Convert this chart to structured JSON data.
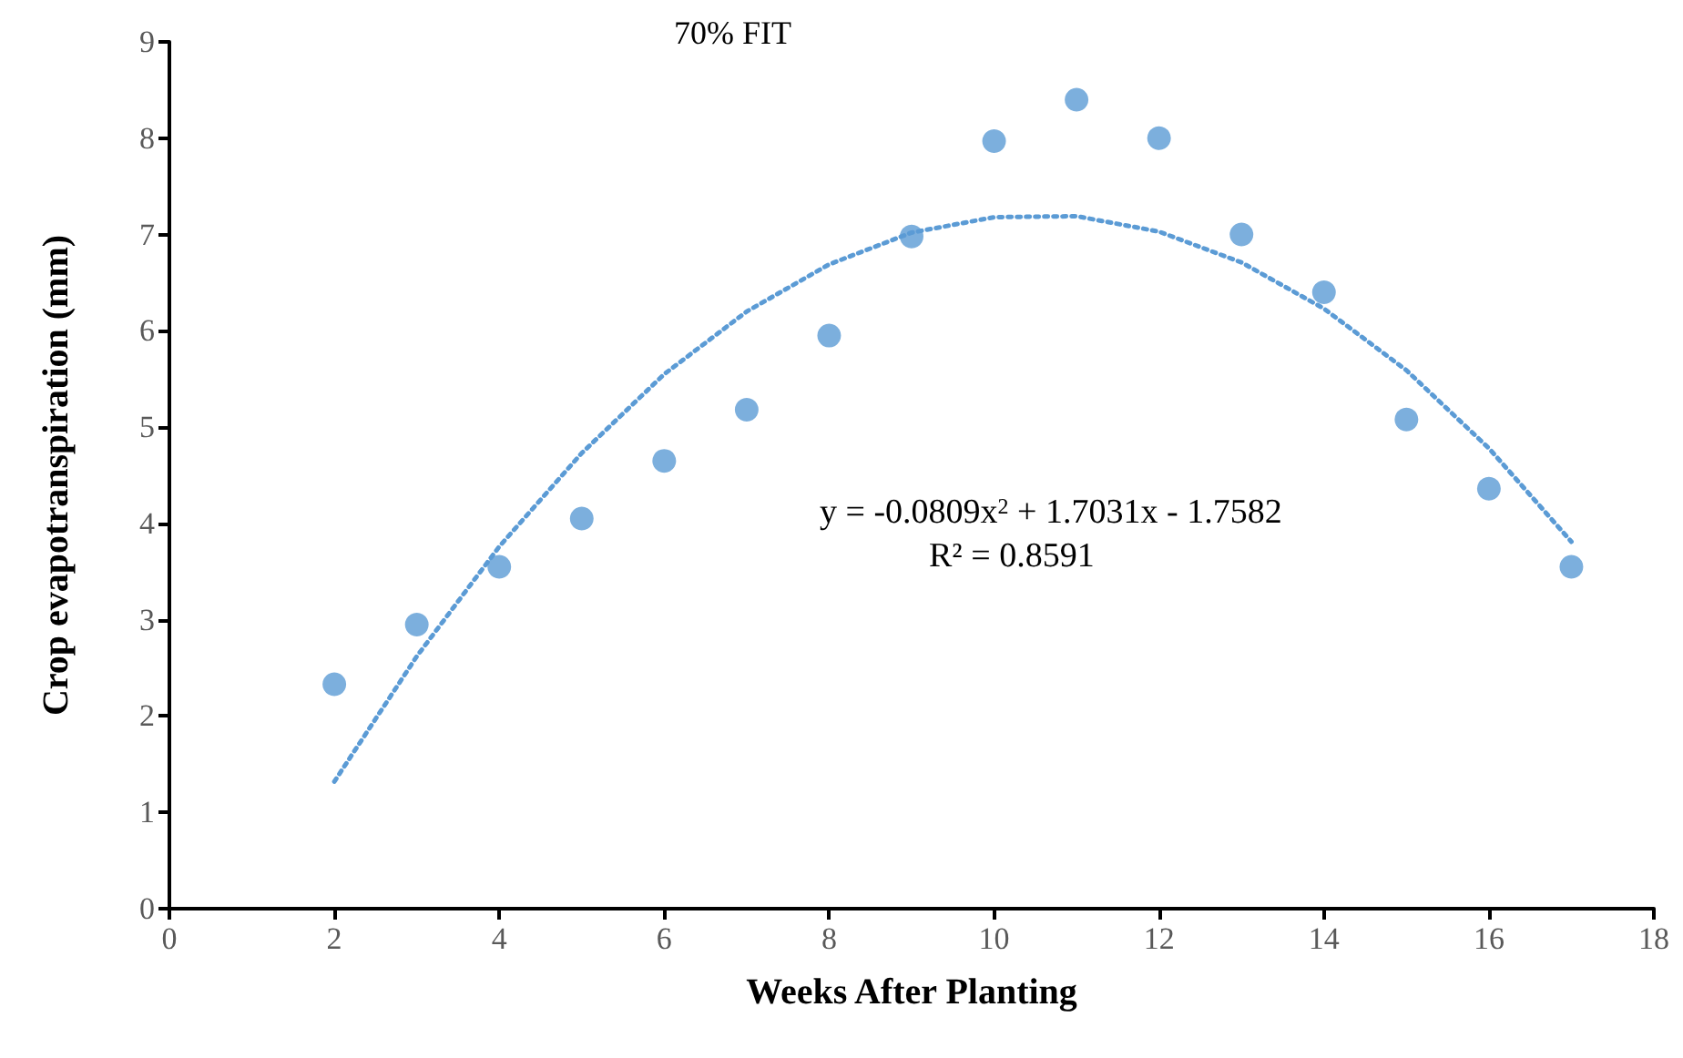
{
  "chart_data": {
    "type": "scatter",
    "title": "70% FIT",
    "xlabel": "Weeks After Planting",
    "ylabel": "Crop evapotranspiration (mm)",
    "annotations": [
      "y = -0.0809x$^{2}$ + 1.7031x - 1.7582",
      "R² = 0.8591"
    ],
    "x": [
      2,
      3,
      4,
      5,
      6,
      7,
      8,
      9,
      10,
      11,
      12,
      13,
      14,
      15,
      16,
      17
    ],
    "marker": "circle",
    "series": [
      {
        "color": "#5b9bd5",
        "values": [
          2.33,
          2.95,
          3.55,
          4.05,
          4.65,
          5.18,
          5.95,
          6.98,
          7.97,
          8.4,
          8.0,
          7.0,
          6.4,
          5.08,
          4.36,
          3.55
        ]
      },
      {
        "type": "line",
        "color": "#5b9bd5",
        "marker": "none",
        "line_style": "dotted",
        "x": [
          2,
          3,
          4,
          5,
          6,
          7,
          8,
          9,
          10,
          11,
          12,
          13,
          14,
          15,
          16,
          17
        ],
        "values": [
          1.32,
          2.62,
          3.76,
          4.73,
          5.55,
          6.2,
          6.69,
          7.02,
          7.18,
          7.19,
          7.03,
          6.71,
          6.23,
          5.59,
          4.78,
          3.81
        ]
      }
    ],
    "xlim": [
      0,
      18
    ],
    "xticks": [
      0,
      2,
      4,
      6,
      8,
      10,
      12,
      14,
      16,
      18
    ],
    "ylim": [
      0,
      9
    ],
    "yticks": [
      0,
      1,
      2,
      3,
      4,
      5,
      6,
      7,
      8,
      9
    ],
    "grid": false
  }
}
